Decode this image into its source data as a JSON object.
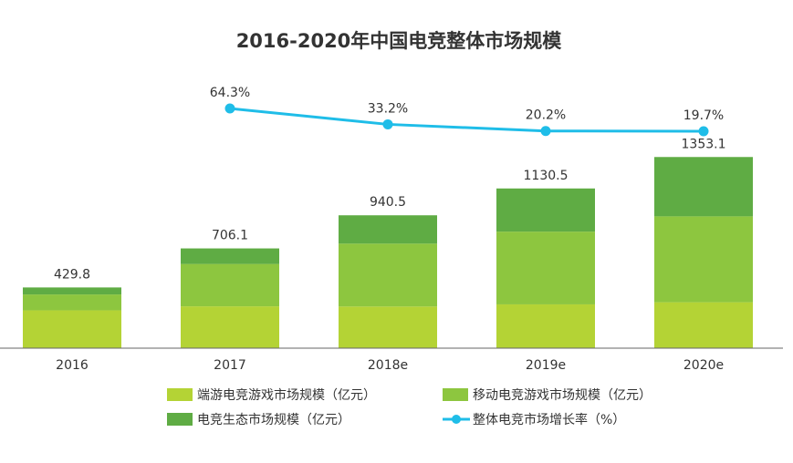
{
  "chart_data": {
    "type": "bar",
    "stacked": true,
    "title": "2016-2020年中国电竞整体市场规模",
    "categories": [
      "2016",
      "2017",
      "2018e",
      "2019e",
      "2020e"
    ],
    "series": [
      {
        "name": "端游电竞游戏市场规模（亿元）",
        "kind": "bar",
        "color": "#b4d335",
        "values": [
          268,
          296,
          295,
          310,
          325
        ]
      },
      {
        "name": "移动电竞游戏市场规模（亿元）",
        "kind": "bar",
        "color": "#8dc63f",
        "values": [
          112,
          300,
          445,
          515,
          608
        ]
      },
      {
        "name": "电竞生态市场规模（亿元）",
        "kind": "bar",
        "color": "#5fac44",
        "values": [
          49.8,
          110.1,
          200.5,
          305.5,
          420.1
        ]
      },
      {
        "name": "整体电竞市场增长率（%）",
        "kind": "line",
        "color": "#1fbde8",
        "values": [
          null,
          64.3,
          33.2,
          20.2,
          19.7
        ]
      }
    ],
    "totals": [
      "429.8",
      "706.1",
      "940.5",
      "1130.5",
      "1353.1"
    ],
    "growth_labels": [
      "",
      "64.3%",
      "33.2%",
      "20.2%",
      "19.7%"
    ],
    "ylim": [
      0,
      1500
    ],
    "growth_ylim": [
      0,
      100
    ],
    "legend": [
      "端游电竞游戏市场规模（亿元）",
      "移动电竞游戏市场规模（亿元）",
      "电竞生态市场规模（亿元）",
      "整体电竞市场增长率（%）"
    ],
    "legend_position": "bottom"
  }
}
